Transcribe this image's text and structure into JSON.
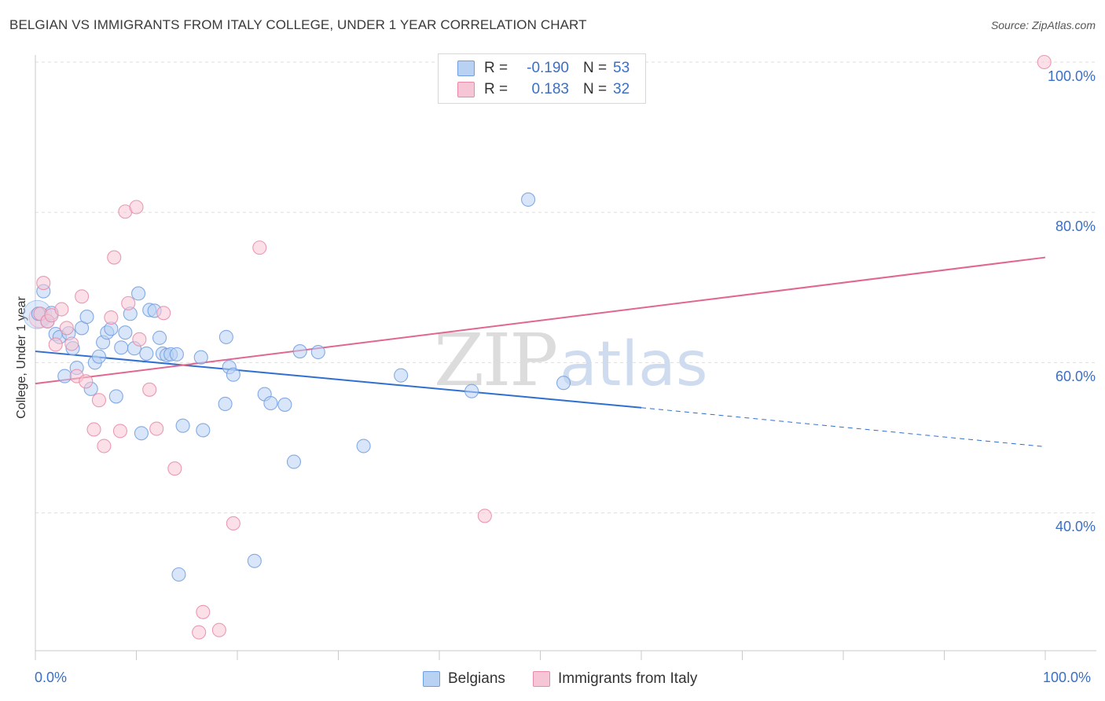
{
  "title": "BELGIAN VS IMMIGRANTS FROM ITALY COLLEGE, UNDER 1 YEAR CORRELATION CHART",
  "source": "Source: ZipAtlas.com",
  "watermark": {
    "zip": "ZIP",
    "atlas": "atlas"
  },
  "legend": {
    "rows": [
      {
        "r_label": "R =",
        "r_value": "-0.190",
        "n_label": "N =",
        "n_value": "53",
        "color": "#6f9ee0",
        "fill": "#b9d2f4"
      },
      {
        "r_label": "R =",
        "r_value": "0.183",
        "n_label": "N =",
        "n_value": "32",
        "color": "#e88aa8",
        "fill": "#f7c6d6"
      }
    ]
  },
  "bottom_legend": {
    "belgians": "Belgians",
    "italy": "Immigrants from Italy"
  },
  "chart_data": {
    "type": "scatter",
    "title": "BELGIAN VS IMMIGRANTS FROM ITALY COLLEGE, UNDER 1 YEAR CORRELATION CHART",
    "xlabel": "",
    "ylabel": "College, Under 1 year",
    "xlim": [
      0,
      100
    ],
    "ylim": [
      20,
      102
    ],
    "x_tick_labels": [
      "0.0%",
      "100.0%"
    ],
    "y_ticks": [
      40,
      60,
      80,
      100
    ],
    "y_tick_labels": [
      "40.0%",
      "60.0%",
      "80.0%",
      "100.0%"
    ],
    "grid": "horizontal dashed",
    "legend_placement": "top-center",
    "series": [
      {
        "name": "Belgians",
        "color": "#6f9ee0",
        "fill": "#b9d2f4",
        "r": -0.19,
        "n": 53,
        "trend": {
          "x0": 0,
          "y0": 61.5,
          "x1": 60,
          "y1": 54.0,
          "dash_to_x": 100,
          "dash_to_y": 48.8
        },
        "points": [
          [
            0.3,
            66.5
          ],
          [
            0.8,
            69.5
          ],
          [
            1.2,
            65.5
          ],
          [
            1.6,
            66.6
          ],
          [
            2.0,
            63.8
          ],
          [
            2.4,
            63.4
          ],
          [
            2.9,
            58.2
          ],
          [
            3.3,
            63.9
          ],
          [
            3.7,
            61.9
          ],
          [
            4.1,
            59.3
          ],
          [
            4.6,
            64.6
          ],
          [
            5.1,
            66.1
          ],
          [
            5.5,
            56.5
          ],
          [
            5.9,
            60.0
          ],
          [
            6.3,
            60.8
          ],
          [
            6.7,
            62.7
          ],
          [
            7.1,
            64.0
          ],
          [
            7.5,
            64.5
          ],
          [
            8.0,
            55.5
          ],
          [
            8.5,
            62.0
          ],
          [
            8.9,
            64.0
          ],
          [
            9.4,
            66.5
          ],
          [
            9.8,
            61.9
          ],
          [
            10.2,
            69.2
          ],
          [
            10.5,
            50.6
          ],
          [
            11.0,
            61.2
          ],
          [
            11.3,
            67.0
          ],
          [
            11.8,
            66.9
          ],
          [
            12.3,
            63.3
          ],
          [
            12.6,
            61.2
          ],
          [
            13.0,
            61.0
          ],
          [
            13.4,
            61.1
          ],
          [
            14.0,
            61.1
          ],
          [
            14.2,
            31.8
          ],
          [
            14.6,
            51.6
          ],
          [
            16.4,
            60.7
          ],
          [
            16.6,
            51.0
          ],
          [
            18.8,
            54.5
          ],
          [
            18.9,
            63.4
          ],
          [
            19.2,
            59.4
          ],
          [
            19.6,
            58.4
          ],
          [
            21.7,
            33.6
          ],
          [
            22.7,
            55.8
          ],
          [
            23.3,
            54.6
          ],
          [
            24.7,
            54.4
          ],
          [
            25.6,
            46.8
          ],
          [
            26.2,
            61.5
          ],
          [
            28.0,
            61.4
          ],
          [
            32.5,
            48.9
          ],
          [
            36.2,
            58.3
          ],
          [
            43.2,
            56.2
          ],
          [
            48.8,
            81.7
          ],
          [
            52.3,
            57.3
          ]
        ]
      },
      {
        "name": "Immigrants from Italy",
        "color": "#e88aa8",
        "fill": "#f7c6d6",
        "r": 0.183,
        "n": 32,
        "trend": {
          "x0": 0,
          "y0": 57.2,
          "x1": 100,
          "y1": 74.0
        },
        "points": [
          [
            0.5,
            66.5
          ],
          [
            0.8,
            70.6
          ],
          [
            1.2,
            65.5
          ],
          [
            1.6,
            66.3
          ],
          [
            2.0,
            62.4
          ],
          [
            2.6,
            67.1
          ],
          [
            3.1,
            64.6
          ],
          [
            3.6,
            62.5
          ],
          [
            4.1,
            58.2
          ],
          [
            4.6,
            68.8
          ],
          [
            5.0,
            57.5
          ],
          [
            5.8,
            51.1
          ],
          [
            6.3,
            55.0
          ],
          [
            6.8,
            48.9
          ],
          [
            7.5,
            66.0
          ],
          [
            7.8,
            74.0
          ],
          [
            8.4,
            50.9
          ],
          [
            8.9,
            80.1
          ],
          [
            9.2,
            67.9
          ],
          [
            10.0,
            80.7
          ],
          [
            10.3,
            63.1
          ],
          [
            11.3,
            56.4
          ],
          [
            12.0,
            51.2
          ],
          [
            12.7,
            66.6
          ],
          [
            13.8,
            45.9
          ],
          [
            16.2,
            24.1
          ],
          [
            16.6,
            26.8
          ],
          [
            18.2,
            24.4
          ],
          [
            19.6,
            38.6
          ],
          [
            22.2,
            75.3
          ],
          [
            44.5,
            39.6
          ],
          [
            99.9,
            100.0
          ]
        ]
      }
    ]
  }
}
